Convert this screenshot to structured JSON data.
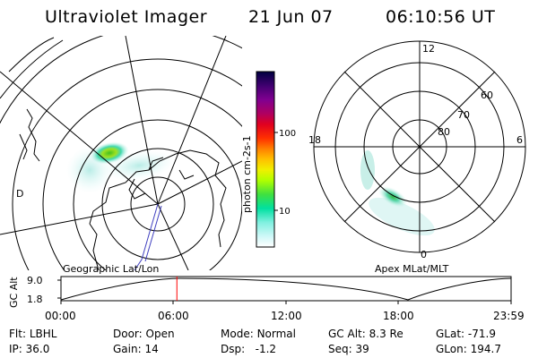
{
  "header": {
    "title": "Ultraviolet Imager",
    "date": "21 Jun 07",
    "time": "06:10:56 UT"
  },
  "colorbar": {
    "unit_label": "photon cm-2s-1",
    "ticks": [
      "100",
      "10"
    ],
    "colors": [
      "#000040",
      "#400070",
      "#800090",
      "#b00060",
      "#e00020",
      "#ff3000",
      "#ff8000",
      "#ffc000",
      "#f0f000",
      "#b0ff00",
      "#40e040",
      "#00e0a0",
      "#80f0e0",
      "#d0f8f8",
      "#ffffff"
    ]
  },
  "left_panel": {
    "label": "Geographic Lat/Lon",
    "marker": "D"
  },
  "right_panel": {
    "label": "Apex MLat/MLT",
    "mlt_labels": {
      "top": "12",
      "left": "18",
      "right": "6",
      "bottom": "0"
    },
    "lat_labels": [
      "60",
      "70",
      "80"
    ]
  },
  "altitude_plot": {
    "ylabel": "GC Alt",
    "yticks": [
      "9.0",
      "1.8"
    ],
    "xticks": [
      "00:00",
      "06:00",
      "12:00",
      "18:00",
      "23:59"
    ],
    "current_time_marker_hours": 6.18,
    "marker_color": "#ff0000"
  },
  "info": {
    "row1": [
      {
        "label": "Flt:",
        "value": "LBHL"
      },
      {
        "label": "Door:",
        "value": "Open"
      },
      {
        "label": "Mode:",
        "value": "Normal"
      },
      {
        "label": "GC Alt:",
        "value": "8.3 Re"
      },
      {
        "label": "GLat:",
        "value": "-71.9"
      }
    ],
    "row2": [
      {
        "label": "IP:",
        "value": "36.0"
      },
      {
        "label": "Gain:",
        "value": "14"
      },
      {
        "label": "Dsp:",
        "value": "-1.2"
      },
      {
        "label": "Seq:",
        "value": "39"
      },
      {
        "label": "GLon:",
        "value": "194.7"
      }
    ]
  }
}
